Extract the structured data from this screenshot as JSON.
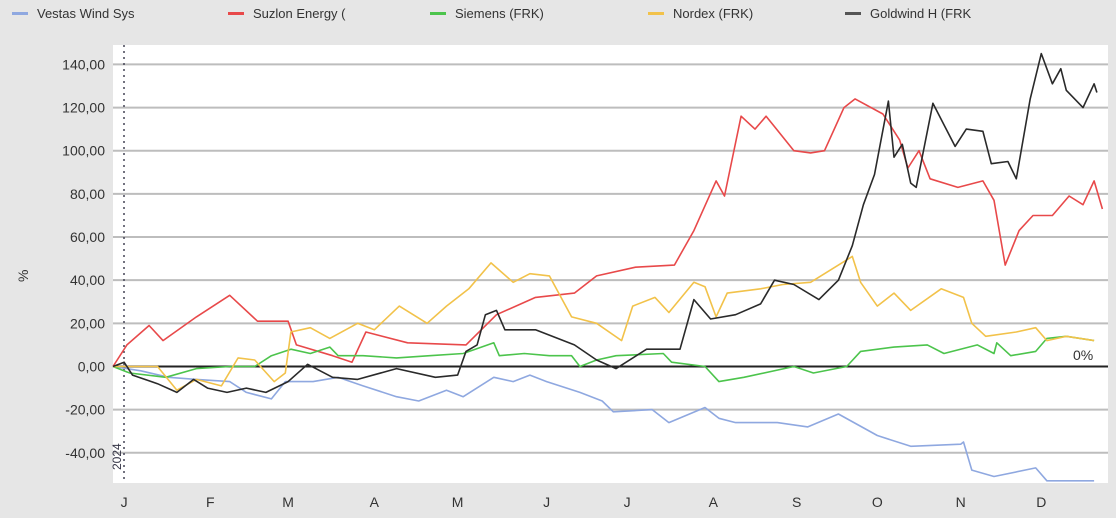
{
  "chart_data": {
    "type": "line",
    "title": "",
    "xlabel": "",
    "ylabel": "%",
    "xlim": [
      0,
      358
    ],
    "ylim": [
      -54,
      149
    ],
    "x_unit": "days since start of 2024",
    "year_marker": "2024",
    "zero_label": "0%",
    "grid": true,
    "legend_position": "top",
    "y_ticks": [
      {
        "value": -40,
        "label": "-40,00"
      },
      {
        "value": -20,
        "label": "-20,00"
      },
      {
        "value": 0,
        "label": "0,00"
      },
      {
        "value": 20,
        "label": "20,00"
      },
      {
        "value": 40,
        "label": "40,00"
      },
      {
        "value": 60,
        "label": "60,00"
      },
      {
        "value": 80,
        "label": "80,00"
      },
      {
        "value": 100,
        "label": "100,00"
      },
      {
        "value": 120,
        "label": "120,00"
      },
      {
        "value": 140,
        "label": "140,00"
      }
    ],
    "x_ticks": [
      {
        "value": 4,
        "label": "J"
      },
      {
        "value": 35,
        "label": "F"
      },
      {
        "value": 63,
        "label": "M"
      },
      {
        "value": 94,
        "label": "A"
      },
      {
        "value": 124,
        "label": "M"
      },
      {
        "value": 156,
        "label": "J"
      },
      {
        "value": 185,
        "label": "J"
      },
      {
        "value": 216,
        "label": "A"
      },
      {
        "value": 246,
        "label": "S"
      },
      {
        "value": 275,
        "label": "O"
      },
      {
        "value": 305,
        "label": "N"
      },
      {
        "value": 334,
        "label": "D"
      }
    ],
    "series": [
      {
        "name": "Vestas Wind Sys",
        "color": "#8fa8e0",
        "points": [
          [
            0,
            0
          ],
          [
            10,
            -2
          ],
          [
            20,
            -5
          ],
          [
            30,
            -6
          ],
          [
            42,
            -7
          ],
          [
            48,
            -12
          ],
          [
            57,
            -15
          ],
          [
            62,
            -7
          ],
          [
            72,
            -7
          ],
          [
            81,
            -5
          ],
          [
            90,
            -9
          ],
          [
            102,
            -14
          ],
          [
            110,
            -16
          ],
          [
            120,
            -11
          ],
          [
            126,
            -14
          ],
          [
            137,
            -5
          ],
          [
            144,
            -7
          ],
          [
            150,
            -4
          ],
          [
            156,
            -7
          ],
          [
            168,
            -12
          ],
          [
            176,
            -16
          ],
          [
            180,
            -21
          ],
          [
            194,
            -20
          ],
          [
            200,
            -26
          ],
          [
            213,
            -19
          ],
          [
            218,
            -24
          ],
          [
            224,
            -26
          ],
          [
            239,
            -26
          ],
          [
            250,
            -28
          ],
          [
            261,
            -22
          ],
          [
            275,
            -32
          ],
          [
            287,
            -37
          ],
          [
            305,
            -36
          ],
          [
            306,
            -35
          ],
          [
            309,
            -48
          ],
          [
            317,
            -51
          ],
          [
            332,
            -47
          ],
          [
            336,
            -53
          ],
          [
            353,
            -53
          ]
        ]
      },
      {
        "name": "Suzlon Energy (",
        "color": "#e8494a",
        "points": [
          [
            0,
            0
          ],
          [
            5,
            10
          ],
          [
            13,
            19
          ],
          [
            18,
            12
          ],
          [
            30,
            23
          ],
          [
            42,
            33
          ],
          [
            52,
            21
          ],
          [
            63,
            21
          ],
          [
            66,
            10
          ],
          [
            79,
            5
          ],
          [
            86,
            2
          ],
          [
            91,
            16
          ],
          [
            106,
            11
          ],
          [
            127,
            10
          ],
          [
            138,
            24
          ],
          [
            152,
            32
          ],
          [
            166,
            34
          ],
          [
            174,
            42
          ],
          [
            188,
            46
          ],
          [
            202,
            47
          ],
          [
            209,
            63
          ],
          [
            217,
            86
          ],
          [
            220,
            79
          ],
          [
            226,
            116
          ],
          [
            231,
            110
          ],
          [
            235,
            116
          ],
          [
            245,
            100
          ],
          [
            251,
            99
          ],
          [
            256,
            100
          ],
          [
            263,
            120
          ],
          [
            267,
            124
          ],
          [
            277,
            117
          ],
          [
            283,
            105
          ],
          [
            286,
            92
          ],
          [
            290,
            100
          ],
          [
            294,
            87
          ],
          [
            304,
            83
          ],
          [
            313,
            86
          ],
          [
            317,
            77
          ],
          [
            321,
            47
          ],
          [
            326,
            63
          ],
          [
            331,
            70
          ],
          [
            338,
            70
          ],
          [
            344,
            79
          ],
          [
            349,
            75
          ],
          [
            353,
            86
          ],
          [
            356,
            73
          ]
        ]
      },
      {
        "name": "Siemens (FRK)",
        "color": "#4cc44c",
        "points": [
          [
            0,
            0
          ],
          [
            6,
            -3
          ],
          [
            19,
            -5
          ],
          [
            30,
            -1
          ],
          [
            42,
            0
          ],
          [
            51,
            0
          ],
          [
            57,
            5
          ],
          [
            64,
            8
          ],
          [
            71,
            6
          ],
          [
            78,
            9
          ],
          [
            81,
            5
          ],
          [
            90,
            5
          ],
          [
            102,
            4
          ],
          [
            114,
            5
          ],
          [
            126,
            6
          ],
          [
            137,
            11
          ],
          [
            139,
            5
          ],
          [
            148,
            6
          ],
          [
            157,
            5
          ],
          [
            165,
            5
          ],
          [
            168,
            0
          ],
          [
            174,
            3
          ],
          [
            181,
            5
          ],
          [
            198,
            6
          ],
          [
            201,
            2
          ],
          [
            213,
            0
          ],
          [
            218,
            -7
          ],
          [
            227,
            -5
          ],
          [
            245,
            0
          ],
          [
            252,
            -3
          ],
          [
            264,
            0
          ],
          [
            269,
            7
          ],
          [
            281,
            9
          ],
          [
            293,
            10
          ],
          [
            299,
            6
          ],
          [
            311,
            10
          ],
          [
            317,
            6
          ],
          [
            318,
            11
          ],
          [
            323,
            5
          ],
          [
            332,
            7
          ],
          [
            336,
            13
          ],
          [
            343,
            14
          ],
          [
            353,
            12
          ]
        ]
      },
      {
        "name": "Nordex (FRK)",
        "color": "#f2c24a",
        "points": [
          [
            0,
            0
          ],
          [
            16,
            0
          ],
          [
            23,
            -11
          ],
          [
            30,
            -6
          ],
          [
            39,
            -9
          ],
          [
            45,
            4
          ],
          [
            51,
            3
          ],
          [
            58,
            -7
          ],
          [
            62,
            -3
          ],
          [
            64,
            16
          ],
          [
            71,
            18
          ],
          [
            78,
            13
          ],
          [
            88,
            20
          ],
          [
            94,
            17
          ],
          [
            103,
            28
          ],
          [
            113,
            20
          ],
          [
            120,
            28
          ],
          [
            128,
            36
          ],
          [
            136,
            48
          ],
          [
            144,
            39
          ],
          [
            150,
            43
          ],
          [
            157,
            42
          ],
          [
            165,
            23
          ],
          [
            174,
            20
          ],
          [
            183,
            12
          ],
          [
            187,
            28
          ],
          [
            195,
            32
          ],
          [
            200,
            25
          ],
          [
            209,
            39
          ],
          [
            213,
            37
          ],
          [
            217,
            23
          ],
          [
            221,
            34
          ],
          [
            233,
            36
          ],
          [
            241,
            38
          ],
          [
            251,
            39
          ],
          [
            266,
            51
          ],
          [
            269,
            39
          ],
          [
            275,
            28
          ],
          [
            281,
            34
          ],
          [
            287,
            26
          ],
          [
            298,
            36
          ],
          [
            306,
            32
          ],
          [
            309,
            20
          ],
          [
            314,
            14
          ],
          [
            325,
            16
          ],
          [
            332,
            18
          ],
          [
            336,
            12
          ],
          [
            343,
            14
          ],
          [
            353,
            12
          ]
        ]
      },
      {
        "name": "Goldwind H (FRK",
        "color": "#2a2a2a",
        "points": [
          [
            0,
            0
          ],
          [
            4,
            2
          ],
          [
            7,
            -4
          ],
          [
            16,
            -8
          ],
          [
            23,
            -12
          ],
          [
            29,
            -6
          ],
          [
            34,
            -10
          ],
          [
            41,
            -12
          ],
          [
            48,
            -10
          ],
          [
            55,
            -12
          ],
          [
            63,
            -7
          ],
          [
            70,
            1
          ],
          [
            79,
            -5
          ],
          [
            88,
            -6
          ],
          [
            102,
            -1
          ],
          [
            116,
            -5
          ],
          [
            124,
            -4
          ],
          [
            127,
            7
          ],
          [
            131,
            10
          ],
          [
            134,
            24
          ],
          [
            138,
            26
          ],
          [
            141,
            17
          ],
          [
            152,
            17
          ],
          [
            166,
            10
          ],
          [
            174,
            3
          ],
          [
            181,
            -1
          ],
          [
            192,
            8
          ],
          [
            204,
            8
          ],
          [
            209,
            31
          ],
          [
            215,
            22
          ],
          [
            224,
            24
          ],
          [
            233,
            29
          ],
          [
            238,
            40
          ],
          [
            245,
            38
          ],
          [
            254,
            31
          ],
          [
            261,
            40
          ],
          [
            266,
            56
          ],
          [
            270,
            75
          ],
          [
            274,
            89
          ],
          [
            279,
            123
          ],
          [
            281,
            97
          ],
          [
            284,
            103
          ],
          [
            287,
            85
          ],
          [
            289,
            83
          ],
          [
            295,
            122
          ],
          [
            303,
            102
          ],
          [
            307,
            110
          ],
          [
            313,
            109
          ],
          [
            316,
            94
          ],
          [
            322,
            95
          ],
          [
            325,
            87
          ],
          [
            330,
            124
          ],
          [
            334,
            145
          ],
          [
            338,
            131
          ],
          [
            341,
            138
          ],
          [
            343,
            128
          ],
          [
            349,
            120
          ],
          [
            353,
            131
          ],
          [
            354,
            127
          ]
        ]
      }
    ]
  }
}
